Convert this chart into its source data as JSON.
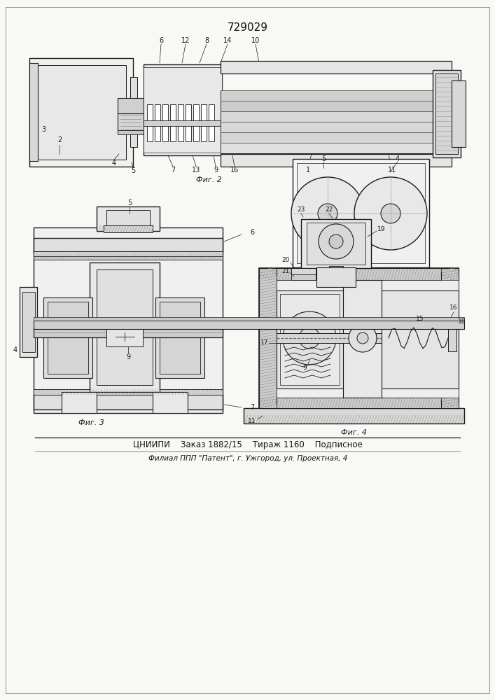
{
  "patent_number": "729029",
  "bg": "#f8f8f5",
  "dc": "#1a1a1a",
  "lc": "#888888",
  "footer_line1": "ЦНИИПИ    Заказ 1882/15    Тираж 1160    Подписное",
  "footer_line2": "Филиал ППП \"Патент\", г. Ужгород, ул. Проектная, 4",
  "fig2_label": "Фиг. 2",
  "fig3_label": "Фиг. 3",
  "fig4_label": "Фиг. 4"
}
